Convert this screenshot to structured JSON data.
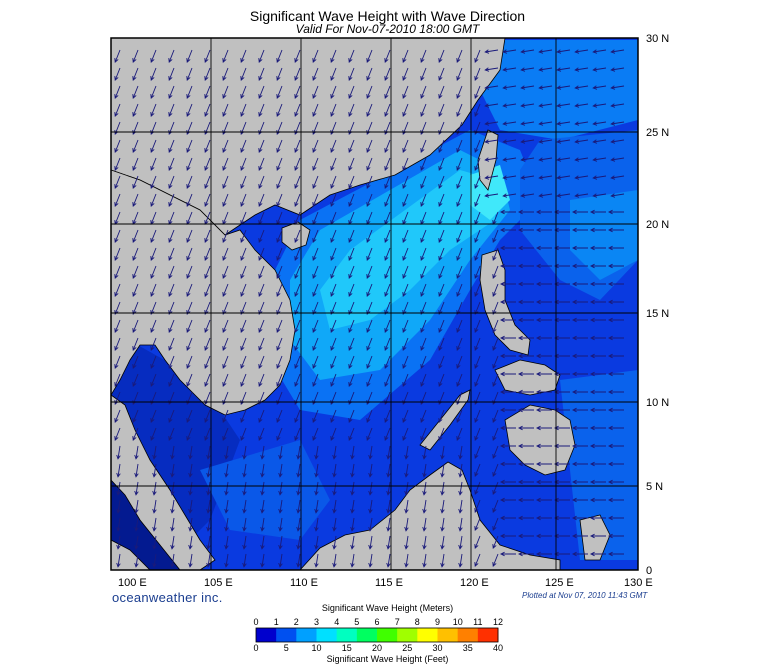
{
  "header": {
    "title": "Significant Wave Height with Wave Direction",
    "subtitle": "Valid For Nov-07-2010 18:00 GMT"
  },
  "map": {
    "longitude_labels": [
      "100 E",
      "105 E",
      "110 E",
      "115 E",
      "120 E",
      "125 E",
      "130 E"
    ],
    "latitude_labels": [
      "30 N",
      "25 N",
      "20 N",
      "15 N",
      "10 N",
      "5 N",
      "0"
    ],
    "land_color": "#c0c0c0",
    "grid_color": "#000000",
    "arrow_color": "#1a1a7a"
  },
  "footer": {
    "brand": "oceanweather inc.",
    "plotted": "Plotted at Nov 07, 2010 11:43 GMT"
  },
  "legend": {
    "title_meters": "Significant Wave Height (Meters)",
    "title_feet": "Significant Wave Height (Feet)",
    "meter_ticks": [
      "0",
      "1",
      "2",
      "3",
      "4",
      "5",
      "6",
      "7",
      "8",
      "9",
      "10",
      "11",
      "12"
    ],
    "feet_ticks": [
      "0",
      "5",
      "10",
      "15",
      "20",
      "25",
      "30",
      "35",
      "40"
    ],
    "colors": [
      "#0000cd",
      "#0050f0",
      "#00a0ff",
      "#00e0ff",
      "#00ffc0",
      "#00ff60",
      "#40ff00",
      "#a0ff00",
      "#ffff00",
      "#ffc000",
      "#ff8000",
      "#ff3000"
    ]
  }
}
